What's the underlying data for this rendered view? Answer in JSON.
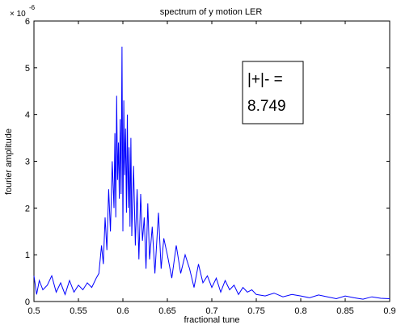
{
  "chart_data": {
    "type": "line",
    "title": "spectrum of y motion LER",
    "xlabel": "fractional tune",
    "ylabel": "fourier amplitude",
    "exponent_base": "× 10",
    "exponent_power": "-6",
    "xlim": [
      0.5,
      0.9
    ],
    "ylim": [
      0,
      6
    ],
    "x_ticks": [
      "0.5",
      "0.55",
      "0.6",
      "0.65",
      "0.7",
      "0.75",
      "0.8",
      "0.85",
      "0.9"
    ],
    "y_ticks": [
      "0",
      "1",
      "2",
      "3",
      "4",
      "5",
      "6"
    ],
    "grid": false,
    "annotation": {
      "line1": "|+|- =",
      "line2": "8.749"
    },
    "series": [
      {
        "color": "#0000ff",
        "x": [
          0.5,
          0.503,
          0.506,
          0.51,
          0.515,
          0.52,
          0.525,
          0.53,
          0.535,
          0.54,
          0.545,
          0.55,
          0.555,
          0.56,
          0.565,
          0.57,
          0.573,
          0.576,
          0.578,
          0.58,
          0.582,
          0.584,
          0.586,
          0.588,
          0.59,
          0.591,
          0.592,
          0.593,
          0.594,
          0.595,
          0.596,
          0.597,
          0.598,
          0.599,
          0.6,
          0.601,
          0.602,
          0.603,
          0.604,
          0.605,
          0.606,
          0.607,
          0.608,
          0.609,
          0.61,
          0.612,
          0.614,
          0.616,
          0.618,
          0.62,
          0.622,
          0.624,
          0.626,
          0.628,
          0.63,
          0.633,
          0.636,
          0.64,
          0.643,
          0.646,
          0.65,
          0.655,
          0.66,
          0.665,
          0.67,
          0.675,
          0.68,
          0.685,
          0.69,
          0.695,
          0.7,
          0.705,
          0.71,
          0.715,
          0.72,
          0.725,
          0.73,
          0.735,
          0.74,
          0.745,
          0.75,
          0.76,
          0.77,
          0.78,
          0.79,
          0.8,
          0.81,
          0.82,
          0.83,
          0.84,
          0.85,
          0.86,
          0.87,
          0.88,
          0.89,
          0.9
        ],
        "y": [
          0.55,
          0.15,
          0.45,
          0.25,
          0.35,
          0.55,
          0.2,
          0.4,
          0.15,
          0.45,
          0.2,
          0.35,
          0.25,
          0.4,
          0.3,
          0.5,
          0.6,
          1.2,
          0.8,
          1.8,
          1.1,
          2.4,
          1.5,
          3.0,
          2.0,
          3.6,
          1.8,
          4.4,
          2.6,
          3.4,
          2.2,
          3.9,
          2.3,
          5.45,
          1.5,
          4.3,
          2.7,
          3.7,
          1.9,
          4.0,
          2.0,
          3.3,
          1.6,
          3.5,
          1.4,
          2.9,
          1.2,
          2.4,
          0.9,
          2.3,
          1.3,
          1.8,
          0.7,
          2.1,
          0.9,
          1.6,
          0.6,
          1.9,
          0.7,
          1.35,
          1.0,
          0.5,
          1.2,
          0.6,
          1.0,
          0.7,
          0.3,
          0.8,
          0.4,
          0.55,
          0.3,
          0.5,
          0.2,
          0.45,
          0.25,
          0.35,
          0.15,
          0.3,
          0.2,
          0.25,
          0.15,
          0.12,
          0.18,
          0.1,
          0.15,
          0.12,
          0.08,
          0.14,
          0.1,
          0.06,
          0.12,
          0.08,
          0.05,
          0.1,
          0.07,
          0.06
        ]
      }
    ]
  }
}
